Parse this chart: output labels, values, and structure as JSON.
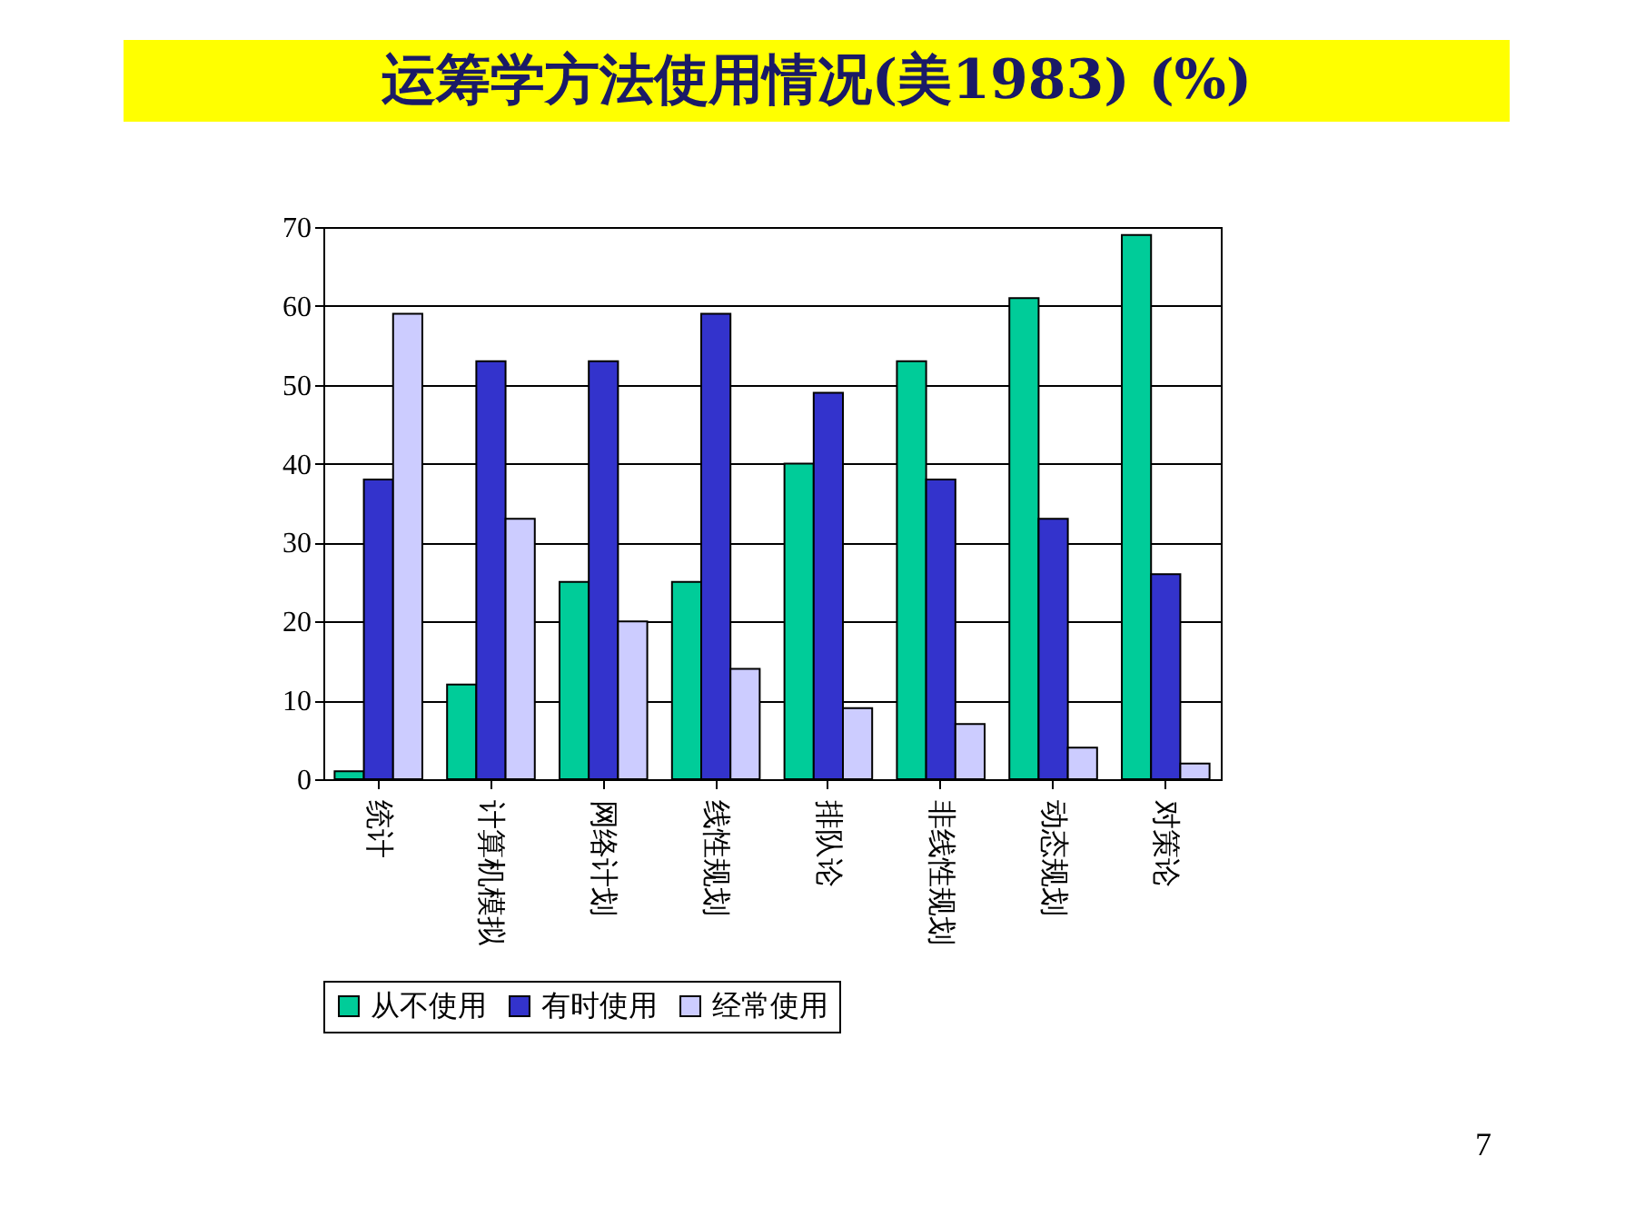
{
  "chart_data": {
    "type": "bar",
    "title": "运筹学方法使用情况(美1983) (%)",
    "categories": [
      "统计",
      "计算机模拟",
      "网络计划",
      "线性规划",
      "排队论",
      "非线性规划",
      "动态规划",
      "对策论"
    ],
    "series": [
      {
        "name": "从不使用",
        "color": "#00cc99",
        "values": [
          1,
          12,
          25,
          25,
          40,
          53,
          61,
          69
        ]
      },
      {
        "name": "有时使用",
        "color": "#3333cc",
        "values": [
          38,
          53,
          53,
          59,
          49,
          38,
          33,
          26
        ]
      },
      {
        "name": "经常使用",
        "color": "#ccccff",
        "values": [
          59,
          33,
          20,
          14,
          9,
          7,
          4,
          2
        ]
      }
    ],
    "ylim": [
      0,
      70
    ],
    "yticks": [
      0,
      10,
      20,
      30,
      40,
      50,
      60,
      70
    ],
    "grid": "y",
    "legend": "bottom",
    "annotations": [
      "7"
    ]
  }
}
